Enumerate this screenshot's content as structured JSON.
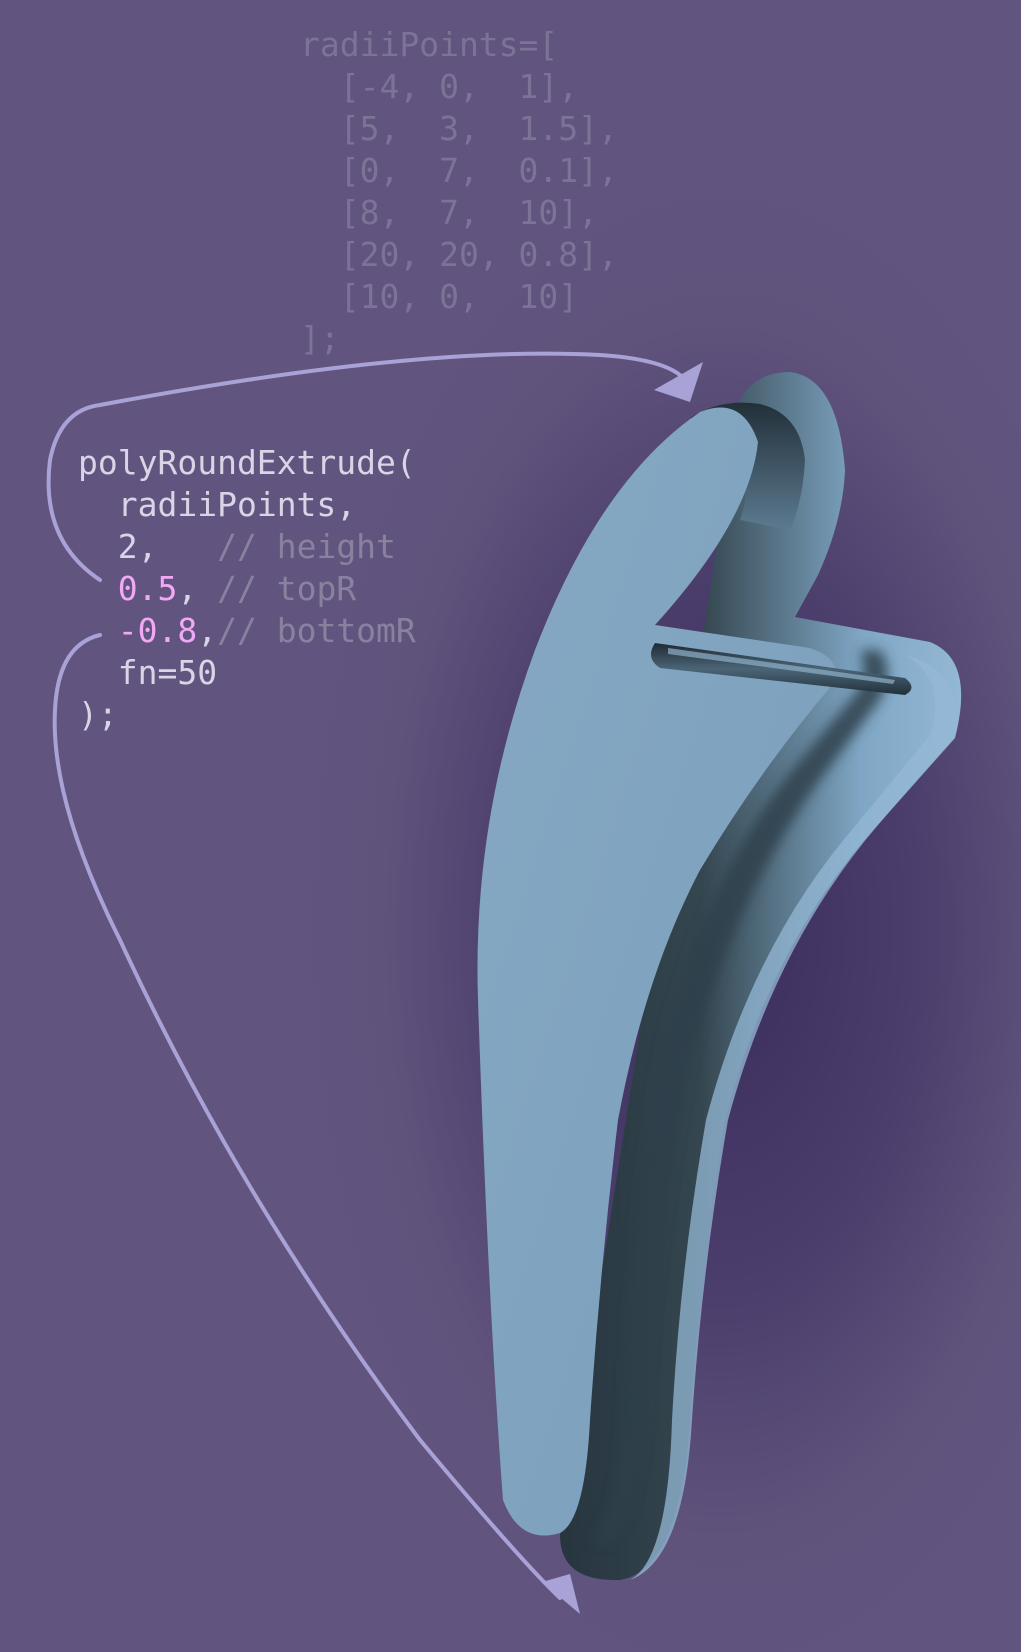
{
  "radii_block": {
    "open": "radiiPoints=[",
    "rows": [
      "[-4, 0,  1],",
      "[5,  3,  1.5],",
      "[0,  7,  0.1],",
      "[8,  7,  10],",
      "[20, 20, 0.8],",
      "[10, 0,  10]"
    ],
    "close": "];"
  },
  "call_block": {
    "function_open": "polyRoundExtrude(",
    "arg_points": "radiiPoints,",
    "arg_height": "2,",
    "comment_height": "// height",
    "arg_top_r": "0.5",
    "comment_top_r": "// topR",
    "arg_bottom_r": "-0.8",
    "comment_bottom_r": "// bottomR",
    "arg_fn": "fn=50",
    "function_close": ");"
  },
  "colors": {
    "background": "#5f537c",
    "code_text": "#d9d4e6",
    "code_faded": "#7c7396",
    "highlight": "#f2a9f5",
    "arrow": "#a9a2d6",
    "shape_face": "#7fa3bf",
    "shape_edge": "#2e3f4c"
  }
}
